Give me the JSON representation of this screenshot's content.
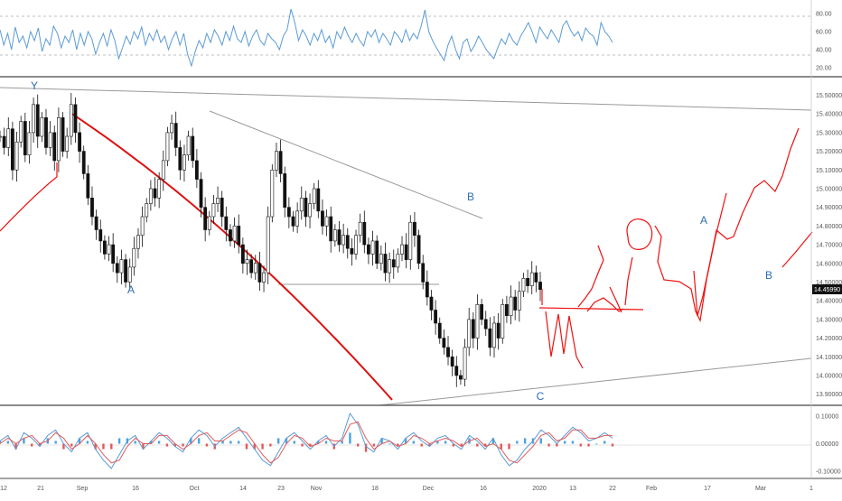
{
  "chart_data": [
    {
      "type": "line",
      "panel": "rsi",
      "y_ticks": [
        "80.00",
        "60.00",
        "40.00",
        "20.00"
      ],
      "ylim": [
        15,
        90
      ],
      "dashed_levels": [
        70,
        30
      ],
      "series": [
        {
          "color": "#5b9bd5",
          "values": [
            62,
            45,
            58,
            40,
            65,
            48,
            55,
            42,
            60,
            50,
            64,
            38,
            52,
            45,
            66,
            58,
            42,
            55,
            48,
            62,
            40,
            58,
            45,
            60,
            52,
            35,
            48,
            58,
            44,
            62,
            50,
            30,
            42,
            55,
            46,
            60,
            52,
            65,
            45,
            58,
            50,
            62,
            48,
            55,
            40,
            52,
            60,
            45,
            58,
            35,
            22,
            38,
            50,
            42,
            58,
            48,
            62,
            55,
            45,
            60,
            50,
            66,
            52,
            48,
            60,
            44,
            55,
            62,
            50,
            45,
            58,
            52,
            48,
            40,
            55,
            62,
            85,
            70,
            50,
            62,
            55,
            45,
            58,
            50,
            62,
            48,
            55,
            42,
            60,
            52,
            65,
            55,
            48,
            58,
            50,
            44,
            60,
            54,
            62,
            48,
            58,
            52,
            45,
            60,
            55,
            48,
            62,
            50,
            58,
            52,
            66,
            84,
            60,
            50,
            42,
            35,
            28,
            45,
            55,
            40,
            30,
            48,
            52,
            38,
            45,
            55,
            48,
            40,
            35,
            30,
            42,
            52,
            46,
            58,
            50,
            45,
            55,
            62,
            70,
            60,
            48,
            65,
            58,
            52,
            62,
            55,
            48,
            66,
            72,
            62,
            55,
            60,
            50,
            64,
            58,
            55,
            45,
            70,
            60,
            55,
            48
          ]
        }
      ]
    },
    {
      "type": "candlestick",
      "panel": "price",
      "y_ticks": [
        "15.50000",
        "15.40000",
        "15.30000",
        "15.20000",
        "15.10000",
        "15.00000",
        "14.90000",
        "14.80000",
        "14.70000",
        "14.60000",
        "14.50000",
        "14.40000",
        "14.30000",
        "14.20000",
        "14.10000",
        "14.00000",
        "13.90000"
      ],
      "ylim": [
        13.85,
        15.57
      ],
      "last_price": "14.45990",
      "x_labels": [
        "12",
        "21",
        "Sep",
        "16",
        "Oct",
        "14",
        "23",
        "Nov",
        "18",
        "Dec",
        "16",
        "2020",
        "13",
        "22",
        "Feb",
        "17",
        "Mar",
        "1"
      ],
      "wave_labels": [
        "Y",
        "A",
        "B",
        "C",
        "A",
        "B"
      ],
      "close_path": [
        15.28,
        15.22,
        15.32,
        15.1,
        15.25,
        15.36,
        15.18,
        15.3,
        15.45,
        15.28,
        15.38,
        15.22,
        15.3,
        15.15,
        15.38,
        15.2,
        15.28,
        15.45,
        15.3,
        15.2,
        15.08,
        14.95,
        14.85,
        14.78,
        14.72,
        14.65,
        14.7,
        14.6,
        14.55,
        14.62,
        14.5,
        14.58,
        14.68,
        14.75,
        14.85,
        14.92,
        15.0,
        14.95,
        15.05,
        15.15,
        15.3,
        15.35,
        15.22,
        15.1,
        15.18,
        15.28,
        15.15,
        15.05,
        14.9,
        14.78,
        14.85,
        14.92,
        14.95,
        14.85,
        14.78,
        14.72,
        14.8,
        14.7,
        14.6,
        14.62,
        14.55,
        14.6,
        14.5,
        14.55,
        14.85,
        15.1,
        15.2,
        15.08,
        14.9,
        14.85,
        14.8,
        14.88,
        14.95,
        14.85,
        14.92,
        15.0,
        14.88,
        14.8,
        14.85,
        14.72,
        14.78,
        14.7,
        14.75,
        14.68,
        14.65,
        14.75,
        14.82,
        14.7,
        14.65,
        14.72,
        14.6,
        14.65,
        14.55,
        14.62,
        14.58,
        14.65,
        14.7,
        14.62,
        14.82,
        14.75,
        14.6,
        14.5,
        14.42,
        14.35,
        14.28,
        14.2,
        14.15,
        14.1,
        14.05,
        14.0,
        13.98,
        14.15,
        14.3,
        14.2,
        14.38,
        14.3,
        14.25,
        14.15,
        14.28,
        14.2,
        14.38,
        14.32,
        14.42,
        14.35,
        14.45,
        14.52,
        14.48,
        14.55,
        14.5,
        14.46
      ],
      "red_curve": [
        [
          14.77,
          0
        ],
        [
          13.87,
          434
        ]
      ]
    },
    {
      "type": "line",
      "panel": "macd",
      "y_ticks": [
        "0.10000",
        "0.00000",
        "-0.10000"
      ],
      "ylim": [
        -0.12,
        0.12
      ],
      "series": [
        {
          "color": "#5b9bd5",
          "values": [
            0.01,
            0.03,
            -0.02,
            0.04,
            0.02,
            -0.01,
            0.03,
            0.05,
            0.0,
            -0.03,
            0.02,
            0.04,
            -0.02,
            -0.06,
            -0.09,
            -0.04,
            0.01,
            0.03,
            -0.02,
            0.01,
            0.04,
            0.02,
            -0.01,
            -0.03,
            0.02,
            0.05,
            0.03,
            -0.01,
            0.02,
            0.04,
            0.06,
            0.02,
            -0.02,
            -0.06,
            -0.08,
            -0.03,
            0.02,
            0.04,
            0.01,
            -0.02,
            0.01,
            0.03,
            -0.01,
            0.02,
            0.11,
            0.07,
            -0.01,
            -0.03,
            0.02,
            0.01,
            -0.02,
            0.02,
            0.04,
            0.01,
            -0.01,
            0.02,
            0.03,
            0.0,
            -0.02,
            0.03,
            0.01,
            -0.02,
            0.02,
            -0.04,
            -0.08,
            -0.06,
            -0.02,
            0.01,
            0.05,
            0.03,
            0.0,
            0.03,
            0.06,
            0.04,
            0.01,
            0.02,
            0.04,
            0.02
          ]
        },
        {
          "color": "#e05a5a",
          "values": [
            0.0,
            0.02,
            0.0,
            0.02,
            0.03,
            0.0,
            0.01,
            0.04,
            0.02,
            -0.02,
            0.0,
            0.03,
            0.0,
            -0.04,
            -0.07,
            -0.06,
            -0.01,
            0.02,
            0.0,
            0.0,
            0.03,
            0.03,
            0.0,
            -0.02,
            0.0,
            0.03,
            0.04,
            0.01,
            0.01,
            0.03,
            0.05,
            0.04,
            0.0,
            -0.04,
            -0.07,
            -0.05,
            0.0,
            0.03,
            0.02,
            -0.01,
            0.0,
            0.02,
            0.01,
            0.01,
            0.07,
            0.08,
            0.02,
            -0.02,
            0.0,
            0.01,
            -0.01,
            0.0,
            0.03,
            0.02,
            0.0,
            0.01,
            0.02,
            0.01,
            -0.01,
            0.01,
            0.02,
            -0.01,
            0.0,
            -0.02,
            -0.06,
            -0.07,
            -0.04,
            -0.01,
            0.03,
            0.04,
            0.01,
            0.02,
            0.05,
            0.05,
            0.02,
            0.02,
            0.03,
            0.03
          ]
        }
      ]
    }
  ]
}
